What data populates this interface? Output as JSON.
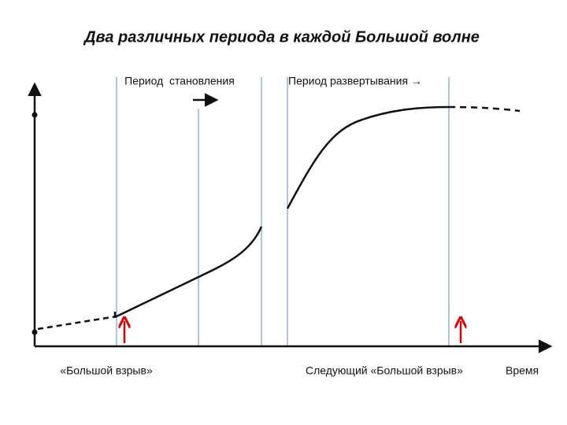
{
  "title": "Два различных периода в каждой Большой волне",
  "labels": {
    "installation": "Период  становления",
    "deployment": "Период развертывания →",
    "big_bang": "«Большой взрыв»",
    "next_big_bang": "Следующий «Большой взрыв»",
    "time": "Время"
  }
}
